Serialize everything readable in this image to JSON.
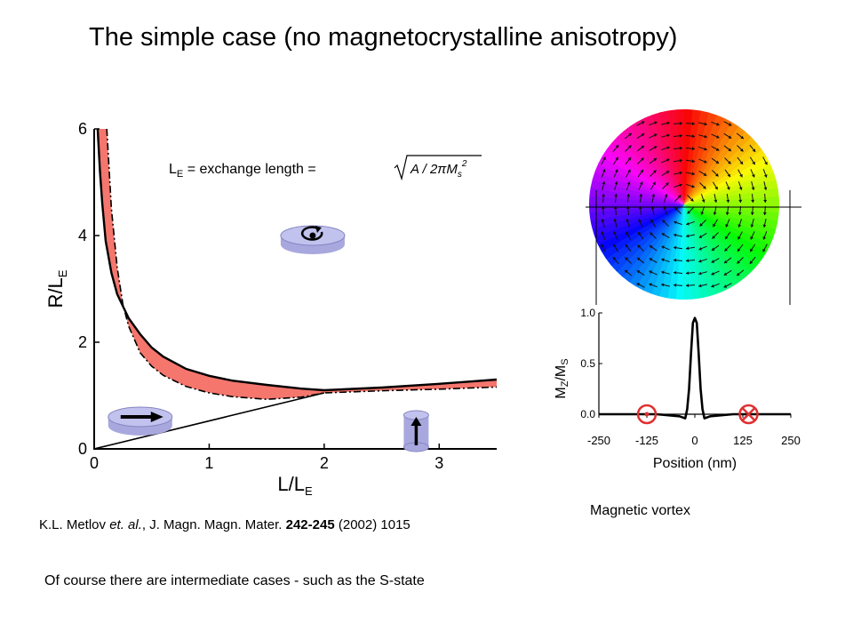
{
  "slide": {
    "title": "The simple case (no magnetocrystalline anisotropy)",
    "subtitle": "Of course there are intermediate cases - such as the S-state"
  },
  "citation": {
    "authors": "K.L. Metlov ",
    "et_al": "et. al.",
    "journal": ", J. Magn. Magn. Mater. ",
    "volume": "242-245",
    "rest": " (2002) 1015"
  },
  "vortex_caption": "Magnetic vortex",
  "colors": {
    "band_fill": "#f4766d",
    "disk_fill": "#a8a8de",
    "disk_edge": "#8585c2",
    "marker_red": "#e03030"
  },
  "chart_data": [
    {
      "type": "area",
      "xlabel_main": "L/L",
      "xlabel_sub": "E",
      "ylabel_main": "R/L",
      "ylabel_sub": "E",
      "xlim": [
        0,
        3.5
      ],
      "ylim": [
        0,
        6
      ],
      "xticks": [
        "0",
        "1",
        "2",
        "3"
      ],
      "yticks": [
        "0",
        "2",
        "4",
        "6"
      ],
      "formula_label_main": "L",
      "formula_label_sub": "E",
      "formula_label_rest": " = exchange length = ",
      "formula_math": "√A / 2πM_s²",
      "lower_boundary": {
        "x": [
          0.11,
          0.15,
          0.2,
          0.25,
          0.3,
          0.4,
          0.5,
          0.6,
          0.8,
          1.0,
          1.2,
          1.5,
          1.8,
          2.0,
          2.5,
          3.0,
          3.5
        ],
        "y": [
          6.0,
          4.5,
          3.4,
          2.7,
          2.3,
          1.8,
          1.55,
          1.38,
          1.17,
          1.05,
          0.98,
          0.93,
          0.97,
          1.05,
          1.09,
          1.12,
          1.16
        ]
      },
      "upper_boundary": {
        "x": [
          0.03,
          0.05,
          0.07,
          0.1,
          0.15,
          0.2,
          0.3,
          0.4,
          0.5,
          0.6,
          0.8,
          1.0,
          1.2,
          1.5,
          1.8,
          2.0,
          2.5,
          3.0,
          3.5
        ],
        "y": [
          6.0,
          5.2,
          4.6,
          3.9,
          3.3,
          2.9,
          2.45,
          2.15,
          1.9,
          1.73,
          1.5,
          1.37,
          1.28,
          1.2,
          1.13,
          1.1,
          1.15,
          1.22,
          1.3
        ]
      },
      "diagonal": {
        "x": [
          0,
          2.0
        ],
        "y": [
          0,
          1.05
        ]
      },
      "regions": [
        {
          "state": "vortex",
          "icon": "vortex-disk-icon",
          "x": 1.9,
          "y": 4.0
        },
        {
          "state": "in-plane",
          "icon": "inplane-disk-icon",
          "x": 0.4,
          "y": 0.6
        },
        {
          "state": "out-of-plane",
          "icon": "outofplane-cylinder-icon",
          "x": 2.8,
          "y": 0.4
        }
      ]
    },
    {
      "type": "line",
      "xlabel": "Position (nm)",
      "ylabel_main": "M",
      "ylabel_sub1": "Z",
      "ylabel_mid": "/M",
      "ylabel_sub2": "S",
      "xlim": [
        -250,
        250
      ],
      "ylim": [
        0,
        1.0
      ],
      "xticks": [
        "-250",
        "-125",
        "0",
        "125",
        "250"
      ],
      "yticks": [
        "0.0",
        "0.5",
        "1.0"
      ],
      "series": [
        {
          "x": [
            -250,
            -100,
            -40,
            -25,
            -20,
            -15,
            -10,
            -5,
            0,
            5,
            10,
            15,
            20,
            25,
            40,
            100,
            250
          ],
          "y": [
            0.0,
            0.0,
            -0.02,
            -0.04,
            0.05,
            0.25,
            0.6,
            0.9,
            0.95,
            0.9,
            0.6,
            0.25,
            0.05,
            -0.04,
            -0.02,
            0.0,
            0.0
          ]
        }
      ],
      "markers": [
        {
          "symbol": "dot-circle",
          "x": -125
        },
        {
          "symbol": "cross-circle",
          "x": 140
        }
      ]
    }
  ]
}
